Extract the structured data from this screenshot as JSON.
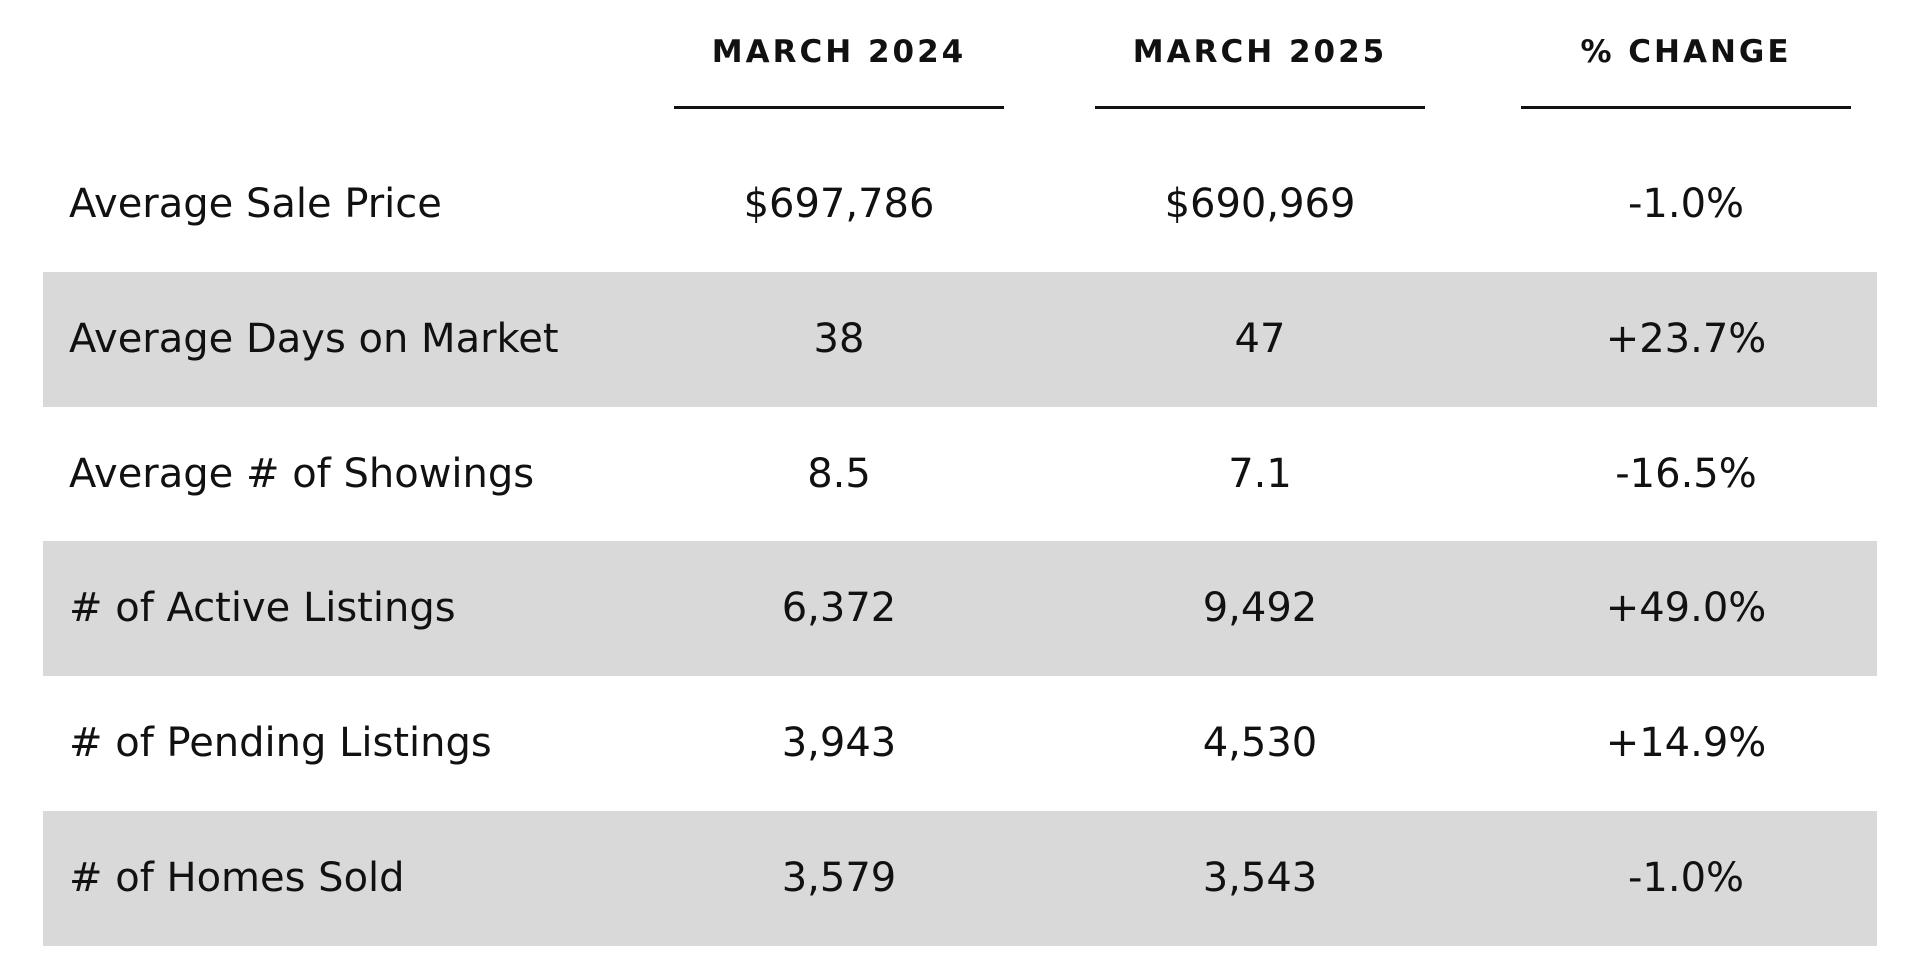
{
  "table": {
    "headers": [
      "MARCH 2024",
      "MARCH 2025",
      "% CHANGE"
    ],
    "rows": [
      [
        "Average Sale Price",
        "$697,786",
        "$690,969",
        "-1.0%"
      ],
      [
        "Average Days on Market",
        "38",
        "47",
        "+23.7%"
      ],
      [
        "Average # of Showings",
        "8.5",
        "7.1",
        "-16.5%"
      ],
      [
        "# of Active Listings",
        "6,372",
        "9,492",
        "+49.0%"
      ],
      [
        "# of Pending Listings",
        "3,943",
        "4,530",
        "+14.9%"
      ],
      [
        "# of Homes Sold",
        "3,579",
        "3,543",
        "-1.0%"
      ]
    ]
  }
}
